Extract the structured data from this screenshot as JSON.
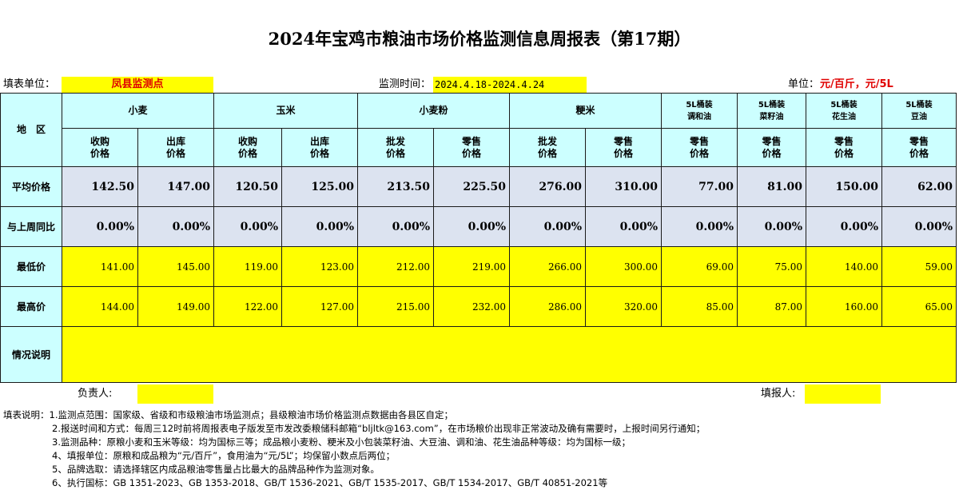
{
  "title": "2024年宝鸡市粮油市场价格监测信息周报表（第17期）",
  "info": {
    "unit_label": "填表单位：",
    "unit_value": "凤县监测点",
    "period_label": "监测时间：",
    "period_value": "2024.4.18-2024.4.24",
    "measure_label": "单位：",
    "measure_value": "元/百斤，元/5L"
  },
  "table": {
    "region_label": "地　区",
    "groups": [
      "小麦",
      "玉米",
      "小麦粉",
      "粳米",
      "5L桶装\n调和油",
      "5L桶装\n菜籽油",
      "5L桶装\n花生油",
      "5L桶装\n豆油"
    ],
    "subheaders": [
      "收购\n价格",
      "出库\n价格",
      "收购\n价格",
      "出库\n价格",
      "批发\n价格",
      "零售\n价格",
      "批发\n价格",
      "零售\n价格",
      "零售\n价格",
      "零售\n价格",
      "零售\n价格",
      "零售\n价格"
    ],
    "rows": [
      {
        "label": "平均价格",
        "values": [
          "142.50",
          "147.00",
          "120.50",
          "125.00",
          "213.50",
          "225.50",
          "276.00",
          "310.00",
          "77.00",
          "81.00",
          "150.00",
          "62.00"
        ]
      },
      {
        "label": "与上周同比",
        "values": [
          "0.00%",
          "0.00%",
          "0.00%",
          "0.00%",
          "0.00%",
          "0.00%",
          "0.00%",
          "0.00%",
          "0.00%",
          "0.00%",
          "0.00%",
          "0.00%"
        ]
      },
      {
        "label": "最低价",
        "values": [
          "141.00",
          "145.00",
          "119.00",
          "123.00",
          "212.00",
          "219.00",
          "266.00",
          "300.00",
          "69.00",
          "75.00",
          "140.00",
          "59.00"
        ]
      },
      {
        "label": "最高价",
        "values": [
          "144.00",
          "149.00",
          "122.00",
          "127.00",
          "215.00",
          "232.00",
          "286.00",
          "320.00",
          "85.00",
          "87.00",
          "160.00",
          "65.00"
        ]
      }
    ],
    "remark_label": "情况说明"
  },
  "sign": {
    "manager_label": "负责人:",
    "filler_label": "填报人:"
  },
  "notes": [
    "填表说明：1.监测点范围：国家级、省级和市级粮油市场监测点；县级粮油市场价格监测点数据由各县区自定；",
    "2.报送时间和方式：每周三12时前将周报表电子版发至市发改委粮储科邮箱“bljltk@163.com”，在市场粮价出现非正常波动及确有需要时，上报时间另行通知；",
    "3.监测品种：原粮小麦和玉米等级：均为国标三等；成品粮小麦粉、粳米及小包装菜籽油、大豆油、调和油、花生油品种等级：均为国标一级；",
    "4、填报单位：原粮和成品粮为“元/百斤”，食用油为“元/5L”；均保留小数点后两位；",
    "5、品牌选取：请选择辖区内成品粮油零售量占比最大的品牌品种作为监测对象。",
    "6、执行国标：GB 1351-2023、GB 1353-2018、GB/T 1536-2021、GB/T 1535-2017、GB/T 1534-2017、GB/T 40851-2021等"
  ],
  "colors": {
    "header_bg": "#ccffff",
    "summary_bg": "#dce3f0",
    "highlight": "#ffff00",
    "unit_red": "#e00000"
  }
}
